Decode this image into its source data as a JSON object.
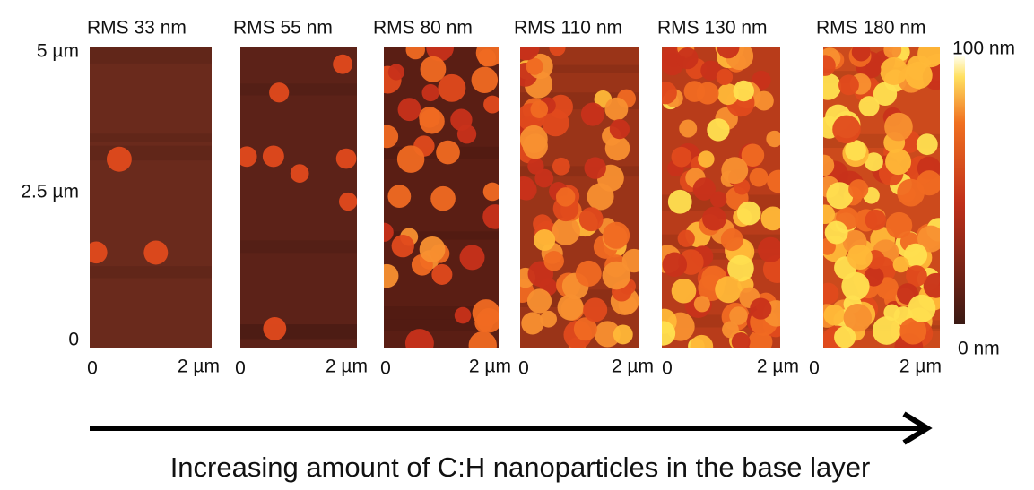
{
  "panels": [
    {
      "title": "RMS 33 nm",
      "x_start": "0",
      "x_end": "2 µm"
    },
    {
      "title": "RMS 55 nm",
      "x_start": "0",
      "x_end": "2 µm"
    },
    {
      "title": "RMS 80 nm",
      "x_start": "0",
      "x_end": "2 µm"
    },
    {
      "title": "RMS 110 nm",
      "x_start": "0",
      "x_end": "2 µm"
    },
    {
      "title": "RMS 130 nm",
      "x_start": "0",
      "x_end": "2 µm"
    },
    {
      "title": "RMS 180 nm",
      "x_start": "0",
      "x_end": "2 µm"
    }
  ],
  "y_axis": {
    "top": "5 µm",
    "middle": "2.5 µm",
    "bottom": "0"
  },
  "colorbar": {
    "max": "100 nm",
    "min": "0 nm"
  },
  "caption": "Increasing amount of C:H nanoparticles in the base layer"
}
